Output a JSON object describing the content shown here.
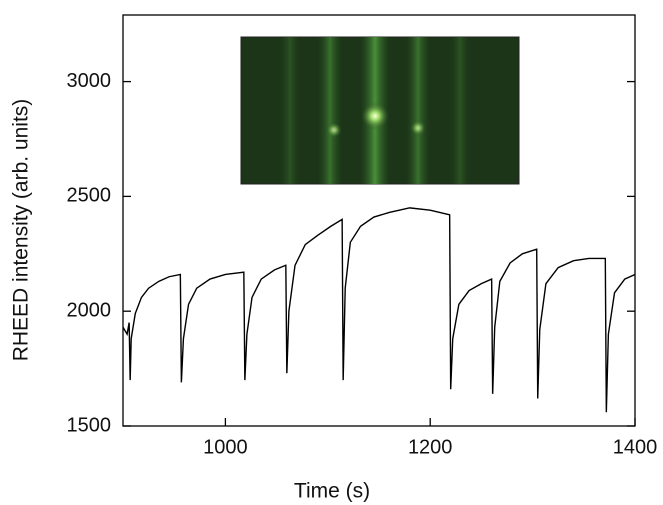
{
  "chart_data": {
    "type": "line",
    "x_label": "Time (s)",
    "y_label": "RHEED intensity (arb. units)",
    "xlim": [
      900,
      1400
    ],
    "ylim": [
      1500,
      3290
    ],
    "xticks": [
      1000,
      1200,
      1400
    ],
    "yticks": [
      1500,
      2000,
      2500,
      3000
    ],
    "series": [
      {
        "color": "#000000",
        "x": [
          900,
          904,
          906,
          907,
          908,
          912,
          918,
          925,
          935,
          945,
          956,
          957,
          959,
          964,
          972,
          985,
          1000,
          1018,
          1019,
          1021,
          1026,
          1035,
          1048,
          1059,
          1060,
          1062,
          1068,
          1078,
          1090,
          1103,
          1114,
          1115,
          1117,
          1122,
          1132,
          1145,
          1160,
          1180,
          1200,
          1219,
          1220,
          1222,
          1228,
          1238,
          1250,
          1260,
          1261,
          1263,
          1268,
          1278,
          1290,
          1304,
          1305,
          1307,
          1313,
          1325,
          1340,
          1355,
          1371,
          1372,
          1374,
          1380,
          1390,
          1400
        ],
        "values": [
          1930,
          1900,
          1950,
          1700,
          1880,
          1990,
          2060,
          2100,
          2130,
          2150,
          2160,
          1690,
          1880,
          2030,
          2100,
          2140,
          2160,
          2170,
          1700,
          1900,
          2060,
          2140,
          2180,
          2200,
          1730,
          2000,
          2200,
          2290,
          2330,
          2370,
          2400,
          1700,
          2100,
          2300,
          2370,
          2410,
          2430,
          2450,
          2440,
          2420,
          1660,
          1880,
          2030,
          2090,
          2120,
          2140,
          1640,
          1930,
          2130,
          2210,
          2250,
          2270,
          1620,
          1920,
          2120,
          2190,
          2220,
          2230,
          2230,
          1560,
          1900,
          2080,
          2140,
          2160
        ]
      }
    ]
  }
}
